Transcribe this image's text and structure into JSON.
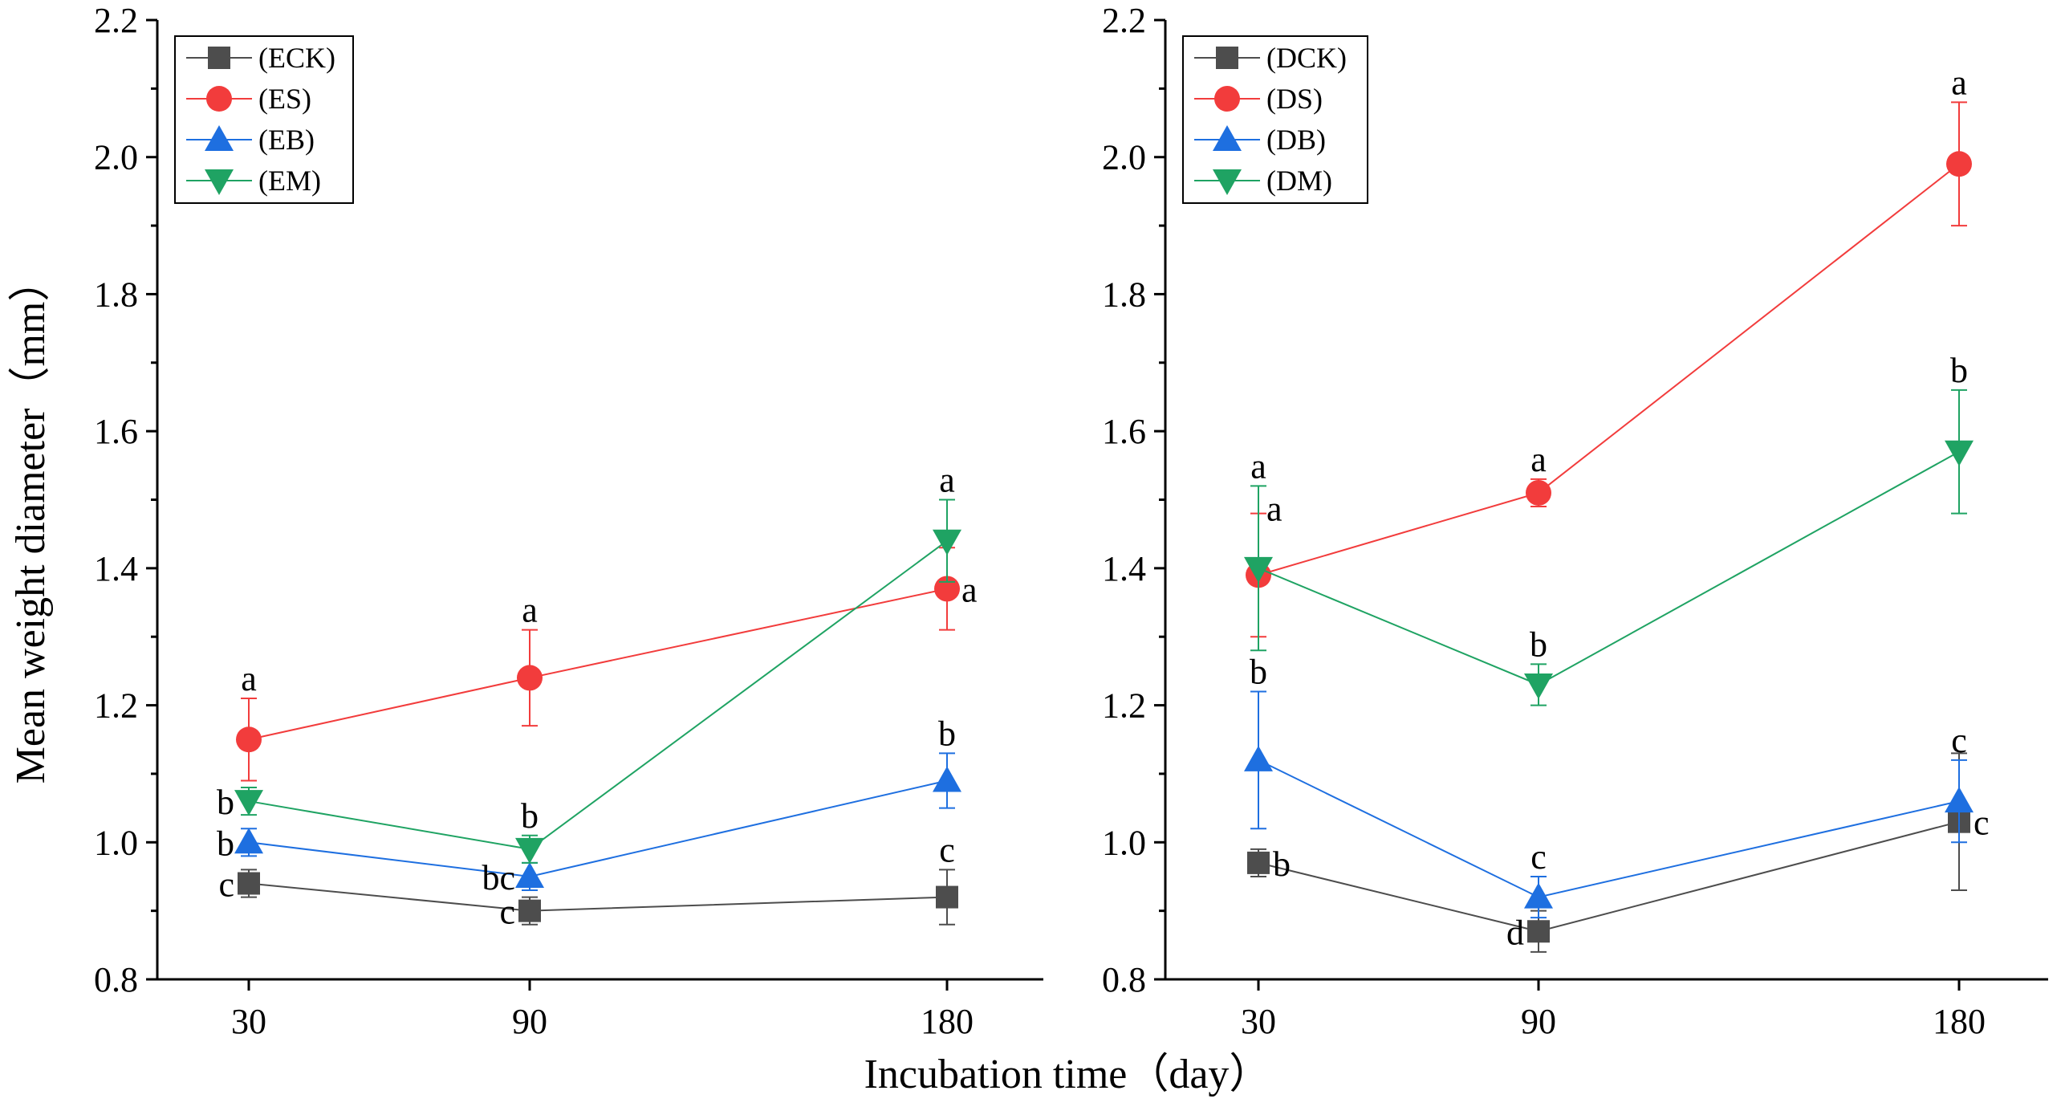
{
  "figure": {
    "xlabel": "Incubation time（day）",
    "ylabel": "Mean weight diameter（mm）"
  },
  "chart_data": [
    {
      "type": "line",
      "panel": "left",
      "x": [
        "30",
        "90",
        "180"
      ],
      "xlabel": "Incubation time（day）",
      "ylabel": "Mean weight diameter（mm）",
      "ylim": [
        0.8,
        2.2
      ],
      "yticks": [
        "0.8",
        "1.0",
        "1.2",
        "1.4",
        "1.6",
        "1.8",
        "2.0",
        "2.2"
      ],
      "legend_position": "top-left",
      "series": [
        {
          "name": "(ECK)",
          "color": "#4d4d4d",
          "marker": "square",
          "values": [
            0.94,
            0.9,
            0.92
          ],
          "errors": [
            0.02,
            0.02,
            0.04
          ],
          "letters": [
            "c",
            "c",
            "c"
          ],
          "letter_side": [
            "left",
            "left",
            "top"
          ]
        },
        {
          "name": "(ES)",
          "color": "#f23c3c",
          "marker": "circle",
          "values": [
            1.15,
            1.24,
            1.37
          ],
          "errors": [
            0.06,
            0.07,
            0.06
          ],
          "letters": [
            "a",
            "a",
            "a"
          ],
          "letter_side": [
            "top",
            "top",
            "right"
          ]
        },
        {
          "name": "(EB)",
          "color": "#1e6fe0",
          "marker": "triangle-up",
          "values": [
            1.0,
            0.95,
            1.09
          ],
          "errors": [
            0.02,
            0.02,
            0.04
          ],
          "letters": [
            "b",
            "bc",
            "b"
          ],
          "letter_side": [
            "left",
            "left",
            "top"
          ]
        },
        {
          "name": "(EM)",
          "color": "#1fa363",
          "marker": "triangle-down",
          "values": [
            1.06,
            0.99,
            1.44
          ],
          "errors": [
            0.02,
            0.02,
            0.06
          ],
          "letters": [
            "b",
            "b",
            "a"
          ],
          "letter_side": [
            "left",
            "top",
            "top"
          ]
        }
      ]
    },
    {
      "type": "line",
      "panel": "right",
      "x": [
        "30",
        "90",
        "180"
      ],
      "xlabel": "Incubation time（day）",
      "ylabel": "",
      "ylim": [
        0.8,
        2.2
      ],
      "yticks": [
        "0.8",
        "1.0",
        "1.2",
        "1.4",
        "1.6",
        "1.8",
        "2.0",
        "2.2"
      ],
      "legend_position": "top-left",
      "series": [
        {
          "name": "(DCK)",
          "color": "#4d4d4d",
          "marker": "square",
          "values": [
            0.97,
            0.87,
            1.03
          ],
          "errors": [
            0.02,
            0.03,
            0.1
          ],
          "letters": [
            "b",
            "d",
            "c"
          ],
          "letter_side": [
            "right",
            "left",
            "right"
          ]
        },
        {
          "name": "(DS)",
          "color": "#f23c3c",
          "marker": "circle",
          "values": [
            1.39,
            1.51,
            1.99
          ],
          "errors": [
            0.09,
            0.02,
            0.09
          ],
          "letters": [
            "a",
            "a",
            "a"
          ],
          "letter_side": [
            "topright",
            "top",
            "top"
          ]
        },
        {
          "name": "(DB)",
          "color": "#1e6fe0",
          "marker": "triangle-up",
          "values": [
            1.12,
            0.92,
            1.06
          ],
          "errors": [
            0.1,
            0.03,
            0.06
          ],
          "letters": [
            "b",
            "c",
            "c"
          ],
          "letter_side": [
            "top",
            "top",
            "top"
          ]
        },
        {
          "name": "(DM)",
          "color": "#1fa363",
          "marker": "triangle-down",
          "values": [
            1.4,
            1.23,
            1.57
          ],
          "errors": [
            0.12,
            0.03,
            0.09
          ],
          "letters": [
            "a",
            "b",
            "b"
          ],
          "letter_side": [
            "top",
            "top",
            "top"
          ]
        }
      ]
    }
  ]
}
